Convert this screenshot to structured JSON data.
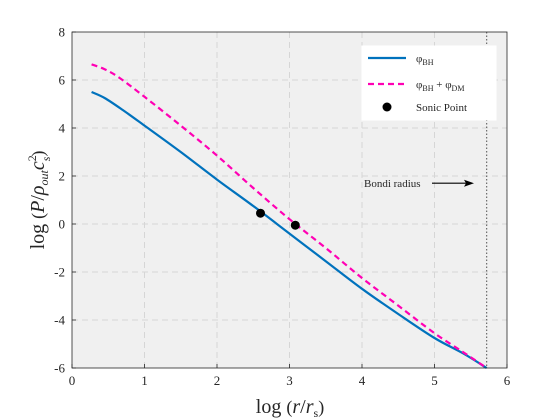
{
  "chart_data": {
    "type": "line",
    "title": "",
    "xlabel": "log (r/r_s)",
    "ylabel": "log (P/ρ_out c_s^2)",
    "xlim": [
      0,
      6
    ],
    "ylim": [
      -6,
      8
    ],
    "xticks": [
      0,
      1,
      2,
      3,
      4,
      5,
      6
    ],
    "yticks": [
      -6,
      -4,
      -2,
      0,
      2,
      4,
      6,
      8
    ],
    "grid": true,
    "legend_position": "top-right",
    "series": [
      {
        "name": "φ_BH",
        "color": "#0072BD",
        "style": "solid",
        "x": [
          0.27,
          0.45,
          0.7,
          1.0,
          1.5,
          2.0,
          2.5,
          3.0,
          3.5,
          4.0,
          4.5,
          5.0,
          5.4,
          5.72
        ],
        "y": [
          5.5,
          5.25,
          4.75,
          4.1,
          3.0,
          1.85,
          0.75,
          -0.4,
          -1.55,
          -2.7,
          -3.75,
          -4.75,
          -5.4,
          -6.0
        ]
      },
      {
        "name": "φ_BH + φ_DM",
        "color": "#FF00B4",
        "style": "dashed",
        "x": [
          0.27,
          0.45,
          0.65,
          1.0,
          1.5,
          2.0,
          2.5,
          3.0,
          3.5,
          4.0,
          4.5,
          5.0,
          5.4,
          5.72
        ],
        "y": [
          6.65,
          6.45,
          6.1,
          5.3,
          4.1,
          2.85,
          1.5,
          0.2,
          -1.0,
          -2.25,
          -3.4,
          -4.55,
          -5.35,
          -6.0
        ]
      }
    ],
    "sonic_points": {
      "name": "Sonic Point",
      "color": "#000000",
      "x": [
        2.6,
        3.08
      ],
      "y": [
        0.45,
        -0.05
      ]
    },
    "bondi_radius": {
      "label": "Bondi radius",
      "x": 5.72,
      "arrow_y": 1.7
    }
  }
}
